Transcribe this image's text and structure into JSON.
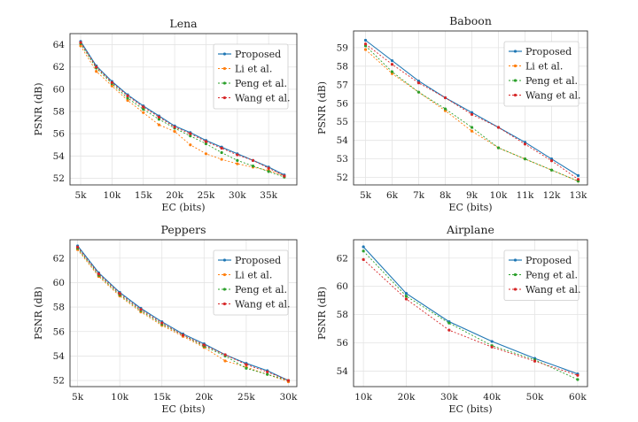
{
  "chart_data": [
    {
      "type": "line",
      "title": "Lena",
      "xlabel": "EC (bits)",
      "ylabel": "PSNR (dB)",
      "xlim": [
        3300,
        39500
      ],
      "ylim": [
        51.4,
        65.0
      ],
      "xticks": [
        5000,
        10000,
        15000,
        20000,
        25000,
        30000,
        35000
      ],
      "xtick_labels": [
        "5k",
        "10k",
        "15k",
        "20k",
        "25k",
        "30k",
        "35k"
      ],
      "yticks": [
        52,
        54,
        56,
        58,
        60,
        62,
        64
      ],
      "ytick_labels": [
        "52",
        "54",
        "56",
        "58",
        "60",
        "62",
        "64"
      ],
      "legend": "top-right",
      "series": [
        {
          "name": "Proposed",
          "color": "#1f77b4",
          "dash": "",
          "x": [
            5000,
            7500,
            10000,
            12500,
            15000,
            17500,
            20000,
            22500,
            25000,
            27500,
            30000,
            32500,
            35000,
            37500
          ],
          "y": [
            64.3,
            62.1,
            60.7,
            59.5,
            58.5,
            57.6,
            56.7,
            56.1,
            55.4,
            54.8,
            54.2,
            53.6,
            53.0,
            52.3
          ]
        },
        {
          "name": "Li et al.",
          "color": "#ff7f0e",
          "dash": "2,2",
          "x": [
            5000,
            7500,
            10000,
            12500,
            15000,
            17500,
            20000,
            22500,
            25000,
            27500,
            30000,
            32500,
            35000,
            37500
          ],
          "y": [
            63.9,
            61.6,
            60.3,
            59.0,
            57.9,
            56.8,
            56.2,
            55.0,
            54.2,
            53.7,
            53.3,
            53.0,
            52.7,
            52.2
          ]
        },
        {
          "name": "Peng et al.",
          "color": "#2ca02c",
          "dash": "2,2",
          "x": [
            5000,
            7500,
            10000,
            12500,
            15000,
            17500,
            20000,
            22500,
            25000,
            27500,
            30000,
            32500,
            35000,
            37500
          ],
          "y": [
            64.1,
            61.9,
            60.5,
            59.2,
            58.2,
            57.3,
            56.5,
            55.8,
            55.1,
            54.3,
            53.6,
            53.1,
            52.6,
            52.1
          ]
        },
        {
          "name": "Wang et al.",
          "color": "#d62728",
          "dash": "2,2",
          "x": [
            5000,
            7500,
            10000,
            12500,
            15000,
            17500,
            20000,
            22500,
            25000,
            27500,
            30000,
            32500,
            35000,
            37500
          ],
          "y": [
            64.2,
            62.0,
            60.6,
            59.4,
            58.4,
            57.5,
            56.6,
            56.0,
            55.3,
            54.7,
            54.1,
            53.6,
            52.9,
            52.2
          ]
        }
      ]
    },
    {
      "type": "line",
      "title": "Baboon",
      "xlabel": "EC (bits)",
      "ylabel": "PSNR (dB)",
      "xlim": [
        4550,
        13350
      ],
      "ylim": [
        51.6,
        59.9
      ],
      "xticks": [
        5000,
        6000,
        7000,
        8000,
        9000,
        10000,
        11000,
        12000,
        13000
      ],
      "xtick_labels": [
        "5k",
        "6k",
        "7k",
        "8k",
        "9k",
        "10k",
        "11k",
        "12k",
        "13k"
      ],
      "yticks": [
        52,
        53,
        54,
        55,
        56,
        57,
        58,
        59
      ],
      "ytick_labels": [
        "52",
        "53",
        "54",
        "55",
        "56",
        "57",
        "58",
        "59"
      ],
      "legend": "top-right",
      "series": [
        {
          "name": "Proposed",
          "color": "#1f77b4",
          "dash": "",
          "x": [
            5000,
            6000,
            7000,
            8000,
            9000,
            10000,
            11000,
            12000,
            13000
          ],
          "y": [
            59.4,
            58.3,
            57.2,
            56.3,
            55.5,
            54.7,
            53.9,
            53.0,
            52.1
          ]
        },
        {
          "name": "Li et al.",
          "color": "#ff7f0e",
          "dash": "2,2",
          "x": [
            5000,
            6000,
            7000,
            8000,
            9000,
            10000,
            11000,
            12000,
            13000
          ],
          "y": [
            58.9,
            57.6,
            56.6,
            55.6,
            54.5,
            53.6,
            53.0,
            52.4,
            51.8
          ]
        },
        {
          "name": "Peng et al.",
          "color": "#2ca02c",
          "dash": "2,2",
          "x": [
            5000,
            6000,
            7000,
            8000,
            9000,
            10000,
            11000,
            12000,
            13000
          ],
          "y": [
            59.1,
            57.7,
            56.6,
            55.7,
            54.7,
            53.6,
            53.0,
            52.4,
            51.8
          ]
        },
        {
          "name": "Wang et al.",
          "color": "#d62728",
          "dash": "2,2",
          "x": [
            5000,
            6000,
            7000,
            8000,
            9000,
            10000,
            11000,
            12000,
            13000
          ],
          "y": [
            59.2,
            58.1,
            57.1,
            56.3,
            55.4,
            54.7,
            53.8,
            52.9,
            51.9
          ]
        }
      ]
    },
    {
      "type": "line",
      "title": "Peppers",
      "xlabel": "EC (bits)",
      "ylabel": "PSNR (dB)",
      "xlim": [
        4100,
        31000
      ],
      "ylim": [
        51.5,
        63.5
      ],
      "xticks": [
        5000,
        10000,
        15000,
        20000,
        25000,
        30000
      ],
      "xtick_labels": [
        "5k",
        "10k",
        "15k",
        "20k",
        "25k",
        "30k"
      ],
      "yticks": [
        52,
        54,
        56,
        58,
        60,
        62
      ],
      "ytick_labels": [
        "52",
        "54",
        "56",
        "58",
        "60",
        "62"
      ],
      "legend": "top-right",
      "series": [
        {
          "name": "Proposed",
          "color": "#1f77b4",
          "dash": "",
          "x": [
            5000,
            7500,
            10000,
            12500,
            15000,
            17500,
            20000,
            22500,
            25000,
            27500,
            30000
          ],
          "y": [
            63.0,
            60.8,
            59.2,
            57.9,
            56.8,
            55.8,
            55.0,
            54.1,
            53.4,
            52.8,
            52.0
          ]
        },
        {
          "name": "Li et al.",
          "color": "#ff7f0e",
          "dash": "2,2",
          "x": [
            5000,
            7500,
            10000,
            12500,
            15000,
            17500,
            20000,
            22500,
            25000,
            27500,
            30000
          ],
          "y": [
            62.7,
            60.5,
            58.9,
            57.6,
            56.5,
            55.6,
            54.7,
            53.6,
            53.1,
            52.5,
            51.9
          ]
        },
        {
          "name": "Peng et al.",
          "color": "#2ca02c",
          "dash": "2,2",
          "x": [
            5000,
            7500,
            10000,
            12500,
            15000,
            17500,
            20000,
            22500,
            25000,
            27500,
            30000
          ],
          "y": [
            62.8,
            60.6,
            59.0,
            57.7,
            56.6,
            55.7,
            54.8,
            54.0,
            53.0,
            52.5,
            52.0
          ]
        },
        {
          "name": "Wang et al.",
          "color": "#d62728",
          "dash": "2,2",
          "x": [
            5000,
            7500,
            10000,
            12500,
            15000,
            17500,
            20000,
            22500,
            25000,
            27500,
            30000
          ],
          "y": [
            62.9,
            60.7,
            59.1,
            57.8,
            56.7,
            55.7,
            54.9,
            54.1,
            53.3,
            52.7,
            52.0
          ]
        }
      ]
    },
    {
      "type": "line",
      "title": "Airplane",
      "xlabel": "EC (bits)",
      "ylabel": "PSNR (dB)",
      "xlim": [
        7700,
        62300
      ],
      "ylim": [
        52.9,
        63.3
      ],
      "xticks": [
        10000,
        20000,
        30000,
        40000,
        50000,
        60000
      ],
      "xtick_labels": [
        "10k",
        "20k",
        "30k",
        "40k",
        "50k",
        "60k"
      ],
      "yticks": [
        54,
        56,
        58,
        60,
        62
      ],
      "ytick_labels": [
        "54",
        "56",
        "58",
        "60",
        "62"
      ],
      "legend": "top-right",
      "series": [
        {
          "name": "Proposed",
          "color": "#1f77b4",
          "dash": "",
          "x": [
            10000,
            20000,
            30000,
            40000,
            50000,
            60000
          ],
          "y": [
            62.8,
            59.5,
            57.5,
            56.1,
            54.9,
            53.8
          ]
        },
        {
          "name": "Peng et al.",
          "color": "#2ca02c",
          "dash": "2,2",
          "x": [
            10000,
            20000,
            30000,
            40000,
            50000,
            60000
          ],
          "y": [
            62.5,
            59.3,
            57.4,
            55.8,
            54.8,
            53.4
          ]
        },
        {
          "name": "Wang et al.",
          "color": "#d62728",
          "dash": "2,2",
          "x": [
            10000,
            20000,
            30000,
            40000,
            50000,
            60000
          ],
          "y": [
            61.9,
            59.1,
            56.9,
            55.7,
            54.7,
            53.7
          ]
        }
      ]
    }
  ]
}
